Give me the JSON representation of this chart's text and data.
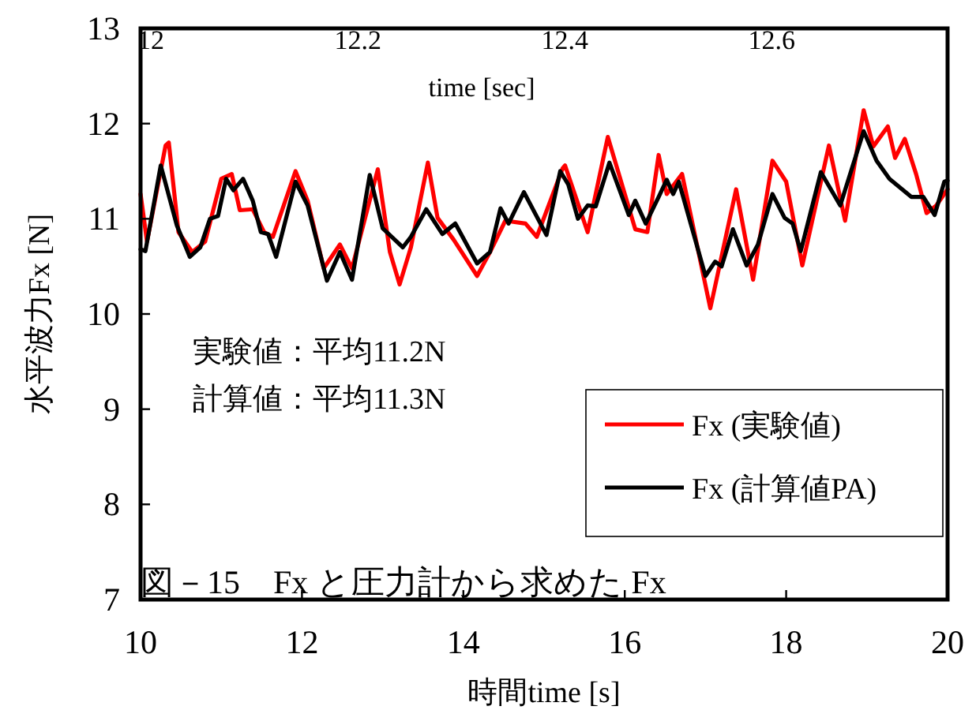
{
  "chart_data": {
    "type": "line",
    "xlabel": "時間time [s]",
    "ylabel": "水平波力Fx [N]",
    "x2label": "time [sec]",
    "xlim": [
      10,
      20
    ],
    "xticks": [
      10,
      12,
      14,
      16,
      18,
      20
    ],
    "ylim": [
      7,
      13
    ],
    "yticks": [
      7,
      8,
      9,
      10,
      11,
      12,
      13
    ],
    "x2lim": [
      11.99,
      12.77
    ],
    "x2ticks": [
      12,
      12.2,
      12.4,
      12.6
    ],
    "legend": "bottom right",
    "annotations": [
      "実験値：平均11.2N",
      "計算値：平均11.3N",
      "図－15　Fx と圧力計から求めた Fx"
    ],
    "series": [
      {
        "name": "Fx (実験値)",
        "color": "#ff0000",
        "x": [
          10,
          10.08,
          10.31,
          10.35,
          10.47,
          10.64,
          10.8,
          11.0,
          11.13,
          11.23,
          11.39,
          11.53,
          11.64,
          11.92,
          12.07,
          12.27,
          12.47,
          12.62,
          12.94,
          13.09,
          13.21,
          13.35,
          13.56,
          13.68,
          13.88,
          14.17,
          14.33,
          14.52,
          14.77,
          14.91,
          15.23,
          15.26,
          15.54,
          15.79,
          16.13,
          16.28,
          16.42,
          16.52,
          16.71,
          17.06,
          17.38,
          17.59,
          17.83,
          18.0,
          18.2,
          18.53,
          18.73,
          18.96,
          19.08,
          19.26,
          19.35,
          19.47,
          19.61,
          19.74,
          19.86,
          20
        ],
        "values": [
          11.26,
          10.76,
          11.77,
          11.8,
          10.86,
          10.65,
          10.76,
          11.42,
          11.47,
          11.09,
          11.1,
          10.86,
          10.81,
          11.5,
          11.19,
          10.48,
          10.73,
          10.48,
          11.52,
          10.65,
          10.31,
          10.7,
          11.59,
          11.01,
          10.78,
          10.4,
          10.65,
          10.98,
          10.95,
          10.81,
          11.53,
          11.56,
          10.86,
          11.86,
          10.89,
          10.86,
          11.67,
          11.26,
          11.47,
          10.06,
          11.31,
          10.36,
          11.61,
          11.39,
          10.51,
          11.77,
          10.98,
          12.14,
          11.76,
          11.97,
          11.64,
          11.84,
          11.47,
          11.06,
          11.14,
          11.31
        ]
      },
      {
        "name": "Fx (計算値PA)",
        "color": "#000000",
        "x": [
          10,
          10.06,
          10.25,
          10.45,
          10.61,
          10.74,
          10.86,
          10.96,
          11.06,
          11.15,
          11.27,
          11.39,
          11.49,
          11.58,
          11.68,
          11.92,
          12.07,
          12.31,
          12.47,
          12.62,
          12.84,
          13.0,
          13.15,
          13.25,
          13.35,
          13.54,
          13.74,
          13.9,
          14.17,
          14.33,
          14.46,
          14.56,
          14.75,
          15.03,
          15.2,
          15.3,
          15.42,
          15.54,
          15.64,
          15.81,
          16.05,
          16.13,
          16.26,
          16.42,
          16.52,
          16.6,
          16.67,
          17.0,
          17.12,
          17.2,
          17.34,
          17.51,
          17.65,
          17.83,
          17.98,
          18.08,
          18.18,
          18.43,
          18.67,
          18.96,
          19.12,
          19.28,
          19.55,
          19.7,
          19.84,
          19.96,
          20
        ],
        "values": [
          10.68,
          10.66,
          11.56,
          10.93,
          10.6,
          10.7,
          11.0,
          11.03,
          11.42,
          11.3,
          11.42,
          11.19,
          10.86,
          10.84,
          10.6,
          11.39,
          11.14,
          10.35,
          10.65,
          10.36,
          11.46,
          10.9,
          10.78,
          10.7,
          10.81,
          11.1,
          10.84,
          10.95,
          10.53,
          10.65,
          11.11,
          10.95,
          11.28,
          10.83,
          11.5,
          11.36,
          11.0,
          11.14,
          11.13,
          11.59,
          11.04,
          11.19,
          10.95,
          11.23,
          11.41,
          11.26,
          11.39,
          10.4,
          10.55,
          10.5,
          10.89,
          10.51,
          10.73,
          11.26,
          11.01,
          10.95,
          10.66,
          11.49,
          11.14,
          11.92,
          11.61,
          11.42,
          11.23,
          11.23,
          11.04,
          11.39,
          11.4
        ]
      }
    ]
  }
}
